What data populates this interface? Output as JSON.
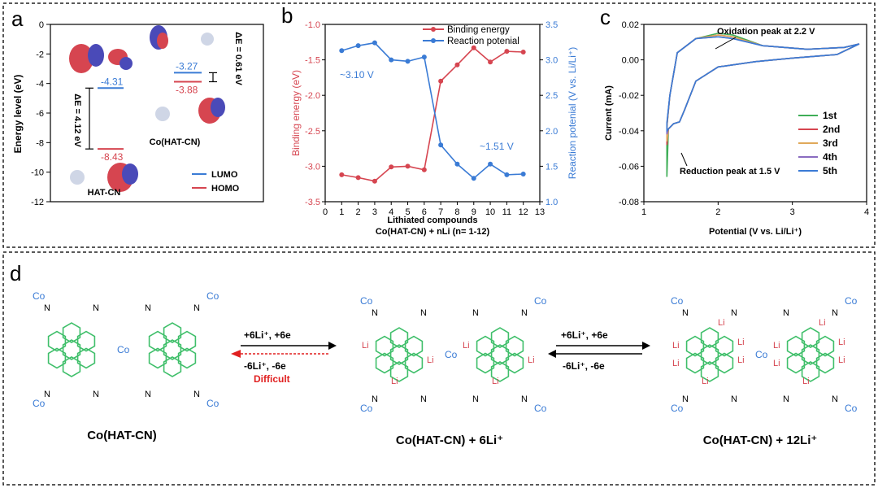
{
  "panel_labels": {
    "a": "a",
    "b": "b",
    "c": "c",
    "d": "d"
  },
  "chart_data": [
    {
      "id": "a",
      "type": "energy-level-diagram",
      "ylabel": "Energy level (eV)",
      "ylim": [
        -12,
        0
      ],
      "yticks": [
        0,
        -2,
        -4,
        -6,
        -8,
        -10,
        -12
      ],
      "molecules": [
        {
          "name": "HAT-CN",
          "lumo": -4.31,
          "homo": -8.43,
          "lumo_label": "-4.31",
          "homo_label": "-8.43",
          "gap_label": "ΔE = 4.12 eV"
        },
        {
          "name": "Co(HAT-CN)",
          "lumo": -3.27,
          "homo": -3.88,
          "lumo_label": "-3.27",
          "homo_label": "-3.88",
          "gap_label": "ΔE = 0.61 eV"
        }
      ],
      "legend": [
        {
          "label": "LUMO",
          "color": "#3a7bd5"
        },
        {
          "label": "HOMO",
          "color": "#d64550"
        }
      ]
    },
    {
      "id": "b",
      "type": "line",
      "xlabel": "Lithiated compounds",
      "xlabel2": "Co(HAT-CN) + nLi (n= 1-12)",
      "ylabel": "Binding energy (eV)",
      "ylabel_right": "Reaction potenial (V vs. Li/Li⁺)",
      "xlim": [
        0,
        13
      ],
      "ylim": [
        -3.5,
        -1.0
      ],
      "ylim_right": [
        1.0,
        3.5
      ],
      "xticks": [
        0,
        1,
        2,
        3,
        4,
        5,
        6,
        7,
        8,
        9,
        10,
        11,
        12,
        13
      ],
      "yticks": [
        -1.0,
        -1.5,
        -2.0,
        -2.5,
        -3.0,
        -3.5
      ],
      "yticks_right": [
        3.5,
        3.0,
        2.5,
        2.0,
        1.5,
        1.0
      ],
      "x": [
        1,
        2,
        3,
        4,
        5,
        6,
        7,
        8,
        9,
        10,
        11,
        12
      ],
      "series": [
        {
          "name": "Binding energy",
          "axis": "left",
          "color": "#d64550",
          "values": [
            -3.12,
            -3.16,
            -3.21,
            -3.01,
            -3.0,
            -3.05,
            -1.8,
            -1.57,
            -1.33,
            -1.53,
            -1.38,
            -1.39
          ]
        },
        {
          "name": "Reaction potenial",
          "axis": "right",
          "color": "#3a7bd5",
          "values": [
            3.13,
            3.2,
            3.24,
            3.0,
            2.98,
            3.04,
            1.8,
            1.53,
            1.33,
            1.53,
            1.38,
            1.39
          ]
        }
      ],
      "annotations": [
        "~3.10 V",
        "~1.51 V"
      ]
    },
    {
      "id": "c",
      "type": "line",
      "xlabel": "Potential (V vs. Li/Li⁺)",
      "ylabel": "Current (mA)",
      "xlim": [
        1,
        4
      ],
      "ylim": [
        -0.08,
        0.02
      ],
      "xticks": [
        1,
        2,
        3,
        4
      ],
      "yticks": [
        0.02,
        0.0,
        -0.02,
        -0.04,
        -0.06,
        -0.08
      ],
      "yticklabels": [
        "0.02",
        "0.00",
        "-0.02",
        "-0.04",
        "-0.06",
        "-0.08"
      ],
      "annotations": [
        "Oxidation peak at 2.2 V",
        "Reduction peak at 1.5 V"
      ],
      "series": [
        {
          "name": "1st",
          "color": "#3fae57",
          "min": -0.066,
          "peak": 0.015
        },
        {
          "name": "2nd",
          "color": "#d64550",
          "min": -0.048,
          "peak": 0.014
        },
        {
          "name": "3rd",
          "color": "#e0a95a",
          "min": -0.046,
          "peak": 0.014
        },
        {
          "name": "4th",
          "color": "#8a6cc0",
          "min": -0.042,
          "peak": 0.013
        },
        {
          "name": "5th",
          "color": "#3a7bd5",
          "min": -0.04,
          "peak": 0.013
        }
      ]
    }
  ],
  "panel_d": {
    "structures": [
      {
        "caption": "Co(HAT-CN)"
      },
      {
        "caption": "Co(HAT-CN) + 6Li⁺"
      },
      {
        "caption": "Co(HAT-CN) + 12Li⁺"
      }
    ],
    "arrow1": {
      "top": "+6Li⁺, +6e",
      "bottom": "-6Li⁺, -6e",
      "note": "Difficult"
    },
    "arrow2": {
      "top": "+6Li⁺, +6e",
      "bottom": "-6Li⁺, -6e"
    },
    "atoms": {
      "co": "Co",
      "n": "N",
      "li": "Li"
    }
  }
}
